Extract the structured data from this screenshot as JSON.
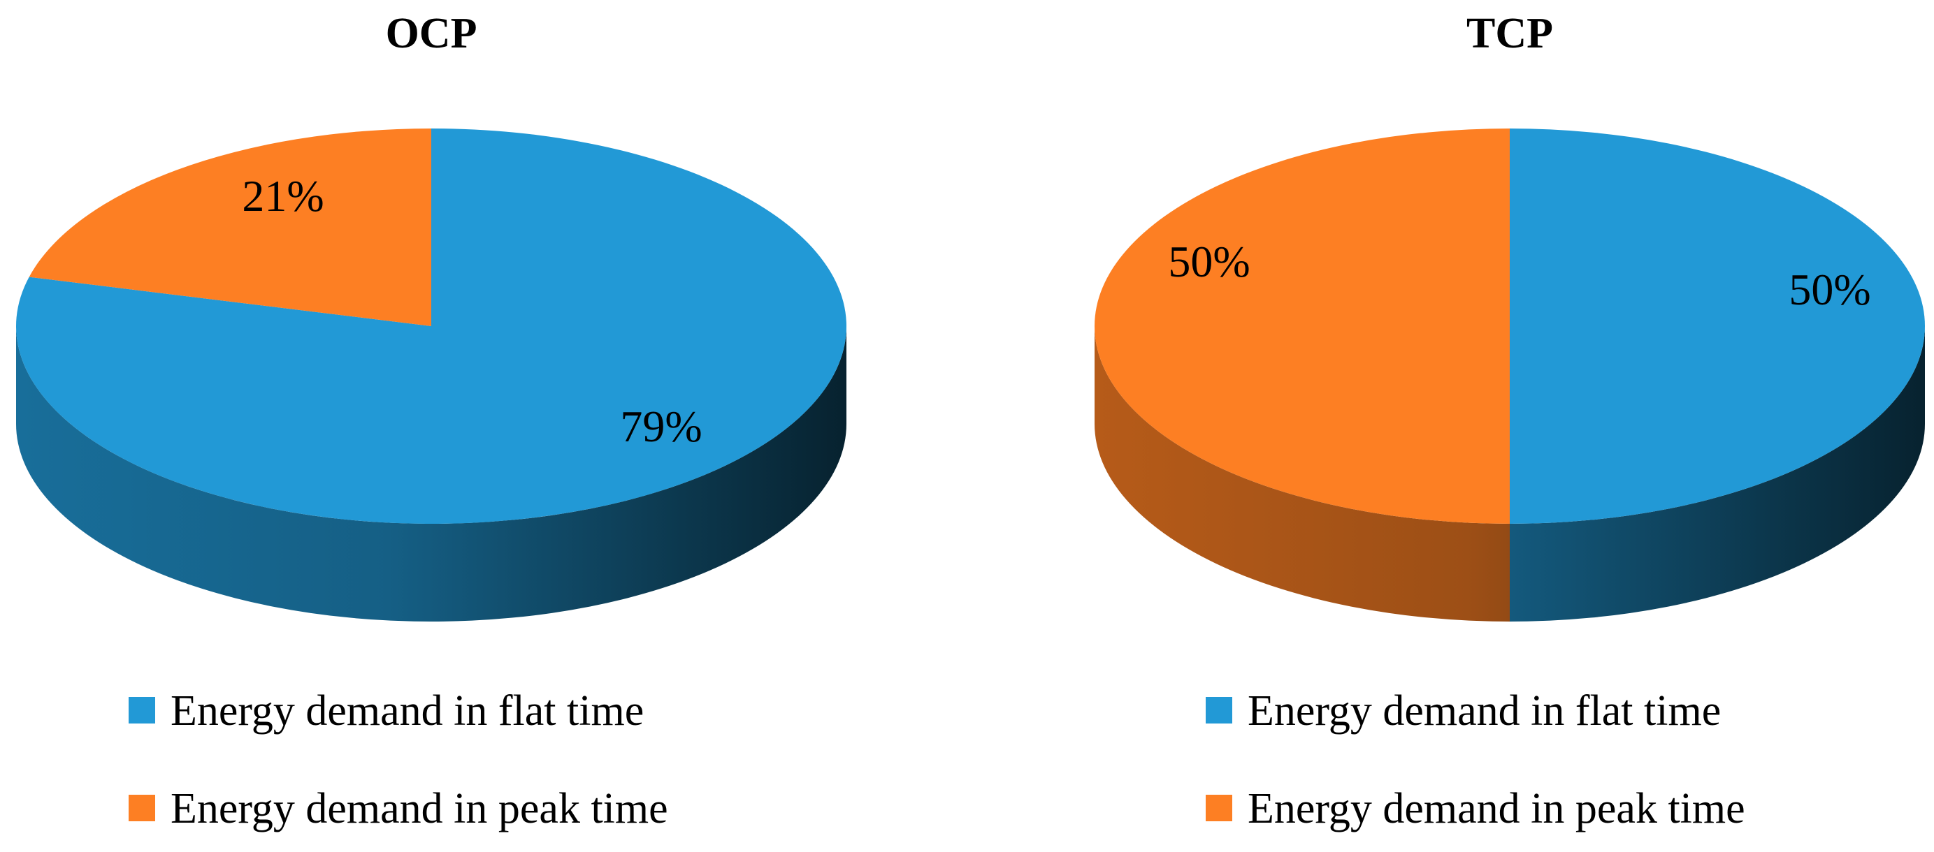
{
  "chart_data": [
    {
      "type": "pie",
      "style": "3d",
      "title": "OCP",
      "series": [
        {
          "name": "Energy demand in flat time",
          "value": 79,
          "label": "79%",
          "color": "#2299d6"
        },
        {
          "name": "Energy demand in peak time",
          "value": 21,
          "label": "21%",
          "color": "#fd7f23"
        }
      ],
      "legend_position": "bottom"
    },
    {
      "type": "pie",
      "style": "3d",
      "title": "TCP",
      "series": [
        {
          "name": "Energy demand in flat time",
          "value": 50,
          "label": "50%",
          "color": "#2299d6"
        },
        {
          "name": "Energy demand in peak time",
          "value": 50,
          "label": "50%",
          "color": "#fd7f23"
        }
      ],
      "legend_position": "bottom"
    }
  ]
}
